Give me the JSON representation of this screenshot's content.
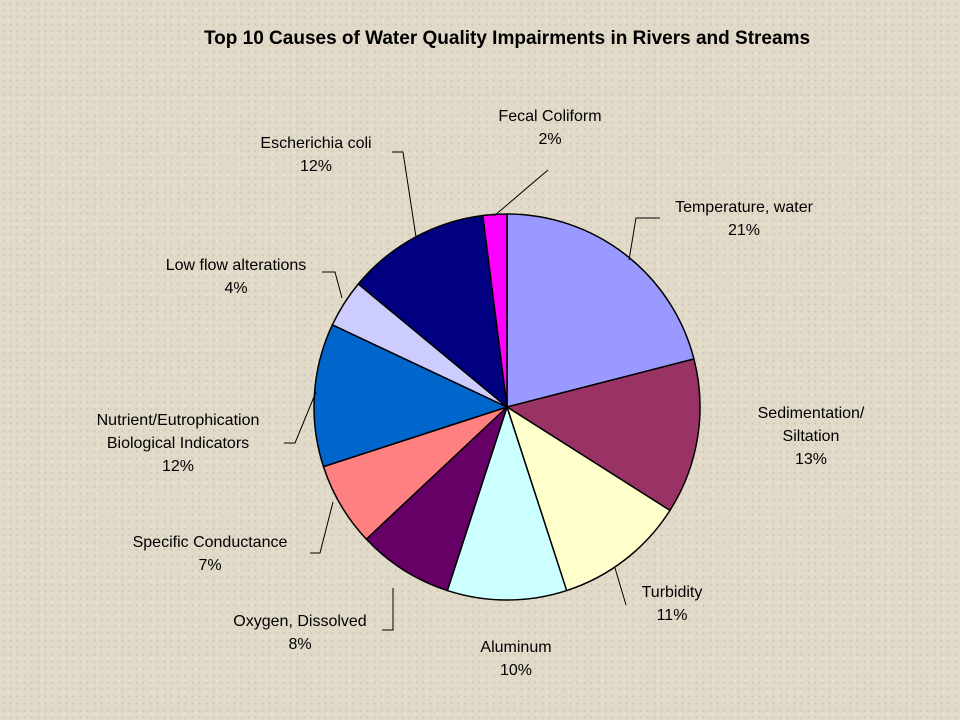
{
  "chart_data": {
    "type": "pie",
    "title": "Top 10 Causes of Water Quality Impairments in Rivers and Streams",
    "slices": [
      {
        "lines": [
          "Temperature, water"
        ],
        "value": 21,
        "pct_label": "21%",
        "color": "#9999ff"
      },
      {
        "lines": [
          "Sedimentation/",
          "Siltation"
        ],
        "value": 13,
        "pct_label": "13%",
        "color": "#993366"
      },
      {
        "lines": [
          "Turbidity"
        ],
        "value": 11,
        "pct_label": "11%",
        "color": "#ffffcc"
      },
      {
        "lines": [
          "Aluminum"
        ],
        "value": 10,
        "pct_label": "10%",
        "color": "#ccffff"
      },
      {
        "lines": [
          "Oxygen, Dissolved"
        ],
        "value": 8,
        "pct_label": "8%",
        "color": "#660066"
      },
      {
        "lines": [
          "Specific Conductance"
        ],
        "value": 7,
        "pct_label": "7%",
        "color": "#ff8080"
      },
      {
        "lines": [
          "Nutrient/Eutrophication",
          "Biological Indicators"
        ],
        "value": 12,
        "pct_label": "12%",
        "color": "#0066cc"
      },
      {
        "lines": [
          "Low flow alterations"
        ],
        "value": 4,
        "pct_label": "4%",
        "color": "#ccccff"
      },
      {
        "lines": [
          "Escherichia coli"
        ],
        "value": 12,
        "pct_label": "12%",
        "color": "#000080"
      },
      {
        "lines": [
          "Fecal Coliform"
        ],
        "value": 2,
        "pct_label": "2%",
        "color": "#ff00ff"
      }
    ]
  }
}
